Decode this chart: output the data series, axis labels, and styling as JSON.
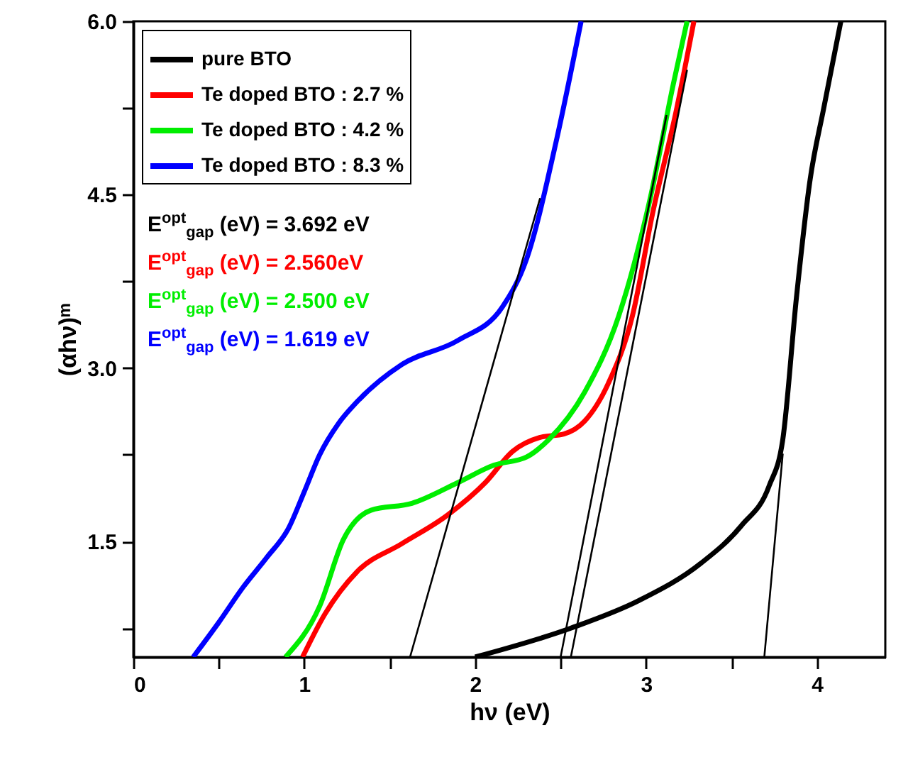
{
  "chart_data": {
    "type": "line",
    "xlabel": "hν (eV)",
    "ylabel": "(αhν)ᵐ",
    "xlim": [
      0,
      4.4
    ],
    "ylim": [
      0.5,
      6.0
    ],
    "xticks": [
      0,
      {
        "value": 0.5,
        "label": null
      },
      1,
      {
        "value": 1.5,
        "label": null
      },
      2,
      {
        "value": 2.5,
        "label": null
      },
      3,
      {
        "value": 3.5,
        "label": null
      },
      4
    ],
    "yticks": [
      {
        "value": 0.75,
        "label": null
      },
      1.5,
      {
        "value": 2.25,
        "label": null
      },
      {
        "value": 3,
        "label": "3.0"
      },
      {
        "value": 3.75,
        "label": null
      },
      4.5,
      {
        "value": 5.25,
        "label": null
      },
      {
        "value": 6,
        "label": "6.0"
      }
    ],
    "grid": false,
    "legend": "top left",
    "series": [
      {
        "name": "pure BTO",
        "color": "#000000",
        "x": [
          2.0,
          2.56,
          2.96,
          3.32,
          3.56,
          3.72,
          3.8,
          3.88,
          3.96,
          4.04,
          4.14
        ],
        "values": [
          0.5,
          0.75,
          0.99,
          1.31,
          1.64,
          1.98,
          2.38,
          3.61,
          4.63,
          5.25,
          6.0
        ]
      },
      {
        "name": "Te doped BTO : 2.7 %",
        "color": "#ff0000",
        "x": [
          0.99,
          1.12,
          1.31,
          1.57,
          1.84,
          2.06,
          2.22,
          2.38,
          2.52,
          2.64,
          2.78,
          2.92,
          3.04,
          3.18,
          3.28
        ],
        "values": [
          0.5,
          0.87,
          1.24,
          1.48,
          1.73,
          2.01,
          2.28,
          2.4,
          2.43,
          2.54,
          2.87,
          3.45,
          4.35,
          5.25,
          6.0
        ]
      },
      {
        "name": "Te doped BTO : 4.2 %",
        "color": "#00ee00",
        "x": [
          0.89,
          1.09,
          1.23,
          1.39,
          1.63,
          1.9,
          2.11,
          2.3,
          2.43,
          2.64,
          2.84,
          3.02,
          3.16,
          3.24
        ],
        "values": [
          0.5,
          0.94,
          1.52,
          1.77,
          1.83,
          2.01,
          2.16,
          2.23,
          2.38,
          2.79,
          3.45,
          4.44,
          5.46,
          6.0
        ]
      },
      {
        "name": "Te doped BTO : 8.3 %",
        "color": "#0000ff",
        "x": [
          0.35,
          0.5,
          0.64,
          0.78,
          0.91,
          1.0,
          1.09,
          1.2,
          1.31,
          1.57,
          1.9,
          2.16,
          2.3,
          2.48,
          2.62
        ],
        "values": [
          0.5,
          0.8,
          1.1,
          1.36,
          1.62,
          1.93,
          2.25,
          2.52,
          2.71,
          3.03,
          3.24,
          3.53,
          3.94,
          5.0,
          6.0
        ]
      },
      {
        "type": "line",
        "color": "#000000",
        "x": [
          3.692,
          3.8
        ],
        "values": [
          0.5,
          2.26
        ]
      },
      {
        "type": "line",
        "color": "#000000",
        "x": [
          2.56,
          3.24
        ],
        "values": [
          0.5,
          5.58
        ]
      },
      {
        "type": "line",
        "color": "#000000",
        "x": [
          2.5,
          3.12
        ],
        "values": [
          0.5,
          5.19
        ]
      },
      {
        "type": "line",
        "color": "#000000",
        "x": [
          1.619,
          2.38
        ],
        "values": [
          0.5,
          4.47
        ]
      }
    ],
    "annotations": [
      "E$^{opt}$$_{gap}$ (eV) = 3.692 eV",
      "E$^{opt}$$_{gap}$ (eV) = 2.560eV",
      "E$^{opt}$$_{gap}$ (eV) = 2.500 eV",
      "E$^{opt}$$_{gap}$ (eV) = 1.619 eV"
    ]
  }
}
